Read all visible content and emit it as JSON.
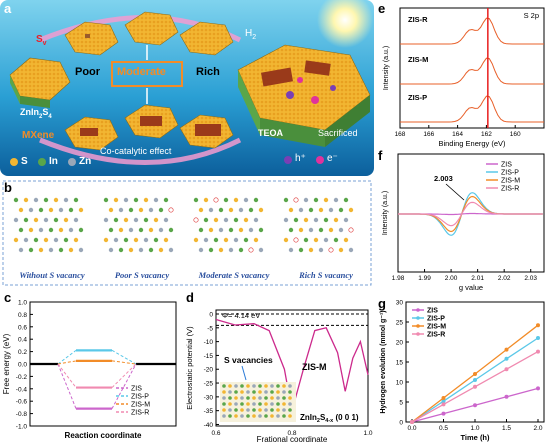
{
  "panel_a": {
    "label": "a",
    "s_label": "S",
    "s_sub": "v",
    "poor": "Poor",
    "moderate": "Moderate",
    "rich": "Rich",
    "znin": "ZnIn",
    "znin_sub2": "2",
    "znin_s": "S",
    "znin_sub4": "4",
    "mxene": "MXene",
    "cocat": "Co-catalytic effect",
    "h2": "H",
    "h2_sub": "2",
    "teoa": "TEOA",
    "sacrificed": "Sacrificed",
    "legend": [
      {
        "symbol": "S",
        "color": "#f2b632"
      },
      {
        "symbol": "In",
        "color": "#5aa64a"
      },
      {
        "symbol": "Zn",
        "color": "#9aa7b8"
      }
    ],
    "hplus": "h⁺",
    "eminus": "e⁻"
  },
  "panel_b": {
    "label": "b",
    "captions": [
      "Without S vacancy",
      "Poor S vacancy",
      "Moderate S vacancy",
      "Rich S vacancy"
    ]
  },
  "panel_c": {
    "label": "c",
    "ylabel": "Free energy (eV)",
    "xlabel": "Reaction coordinate",
    "yticks": [
      "1.0",
      "0.8",
      "0.6",
      "0.4",
      "0.2",
      "0.0",
      "-0.2",
      "-0.4",
      "-0.6",
      "-0.8",
      "-1.0"
    ],
    "chart_data": {
      "type": "line",
      "title": "",
      "xlabel": "Reaction coordinate",
      "ylabel": "Free energy (eV)",
      "ylim": [
        -1.0,
        1.0
      ],
      "series": [
        {
          "name": "ZIS",
          "color": "#cc66cc",
          "value": -0.72
        },
        {
          "name": "ZIS-P",
          "color": "#5bc8e8",
          "value": 0.22
        },
        {
          "name": "ZIS-M",
          "color": "#f28c28",
          "value": 0.05
        },
        {
          "name": "ZIS-R",
          "color": "#f08ab0",
          "value": -0.38
        }
      ]
    }
  },
  "panel_d": {
    "label": "d",
    "ylabel": "Electrostatic potential (V)",
    "xlabel": "Frational coordinate",
    "phi": "Φ= 4.14 eV",
    "curve_label": "ZIS-M",
    "vac_label": "S vacancies",
    "formula": "ZnIn",
    "formula_sub": "2",
    "formula_s": "S",
    "formula_sub2": "4-x",
    "formula_hkl": "(0 0 1)",
    "xticks": [
      "0.6",
      "0.8",
      "1.0"
    ],
    "yticks": [
      "0",
      "-5",
      "-10",
      "-15",
      "-20",
      "-25",
      "-30",
      "-35",
      "-40"
    ]
  },
  "panel_e": {
    "label": "e",
    "title": "S 2p",
    "xlabel": "Binding Energy (eV)",
    "ylabel": "Intensity (a.u.)",
    "rows": [
      "ZIS-R",
      "ZIS-M",
      "ZIS-P"
    ],
    "xticks": [
      "168",
      "166",
      "164",
      "162",
      "160"
    ]
  },
  "panel_f": {
    "label": "f",
    "xlabel": "g value",
    "ylabel": "Intensity (a.u.)",
    "annotation": "2.003",
    "xticks": [
      "1.98",
      "1.99",
      "2.00",
      "2.01",
      "2.02",
      "2.03"
    ],
    "legend": [
      {
        "name": "ZIS",
        "color": "#cc66cc"
      },
      {
        "name": "ZIS-P",
        "color": "#5bc8e8"
      },
      {
        "name": "ZIS-M",
        "color": "#f28c28"
      },
      {
        "name": "ZIS-R",
        "color": "#f08ab0"
      }
    ]
  },
  "panel_g": {
    "label": "g",
    "xlabel": "Time (h)",
    "ylabel": "Hydrogen evolution (mmol g⁻¹)",
    "xticks": [
      "0.0",
      "0.5",
      "1.0",
      "1.5",
      "2.0"
    ],
    "yticks": [
      "0",
      "5",
      "10",
      "15",
      "20",
      "25",
      "30"
    ],
    "chart_data": {
      "type": "line",
      "title": "",
      "xlabel": "Time (h)",
      "ylabel": "Hydrogen evolution (mmol g⁻¹)",
      "xlim": [
        0,
        2
      ],
      "ylim": [
        0,
        30
      ],
      "x": [
        0,
        0.5,
        1.0,
        1.5,
        2.0
      ],
      "series": [
        {
          "name": "ZIS",
          "color": "#cc66cc",
          "values": [
            0,
            2.1,
            4.2,
            6.3,
            8.4
          ]
        },
        {
          "name": "ZIS-P",
          "color": "#5bc8e8",
          "values": [
            0,
            5.2,
            10.5,
            15.8,
            21.0
          ]
        },
        {
          "name": "ZIS-M",
          "color": "#f28c28",
          "values": [
            0,
            6.0,
            12.0,
            18.1,
            24.2
          ]
        },
        {
          "name": "ZIS-R",
          "color": "#f08ab0",
          "values": [
            0,
            4.4,
            8.8,
            13.2,
            17.6
          ]
        }
      ]
    }
  }
}
